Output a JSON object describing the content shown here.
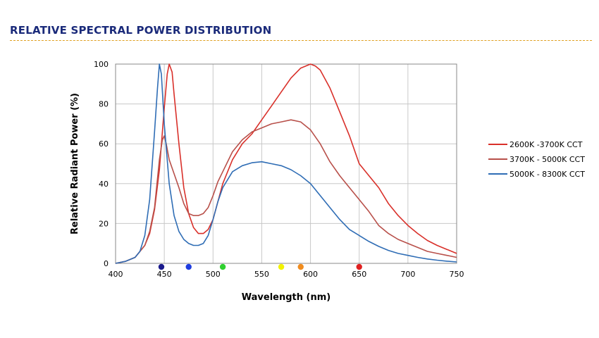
{
  "page": {
    "title": "RELATIVE SPECTRAL POWER DISTRIBUTION"
  },
  "chart_data": {
    "type": "line",
    "title": "",
    "xlabel": "Wavelength (nm)",
    "ylabel": "Relative Radiant Power (%)",
    "xlim": [
      400,
      750
    ],
    "ylim": [
      0,
      100
    ],
    "xticks": [
      400,
      450,
      500,
      550,
      600,
      650,
      700,
      750
    ],
    "yticks": [
      0,
      20,
      40,
      60,
      80,
      100
    ],
    "grid": true,
    "legend_position": "right",
    "series": [
      {
        "name": "2600K -3700K CCT",
        "color": "#d9302a",
        "x": [
          400,
          410,
          420,
          430,
          435,
          440,
          445,
          450,
          453,
          455,
          458,
          460,
          465,
          470,
          475,
          480,
          485,
          490,
          495,
          500,
          505,
          510,
          520,
          530,
          540,
          550,
          560,
          570,
          580,
          590,
          600,
          605,
          610,
          620,
          630,
          640,
          650,
          660,
          670,
          680,
          690,
          700,
          710,
          720,
          730,
          740,
          750
        ],
        "y": [
          0,
          1,
          3,
          9,
          15,
          27,
          47,
          78,
          95,
          100,
          96,
          85,
          60,
          38,
          25,
          18,
          15,
          15,
          17,
          22,
          31,
          40,
          52,
          60,
          65,
          72,
          79,
          86,
          93,
          98,
          100,
          99,
          97,
          88,
          76,
          64,
          50,
          44,
          38,
          30,
          24,
          19,
          15,
          11.5,
          9,
          7,
          5
        ]
      },
      {
        "name": "3700K - 5000K CCT",
        "color": "#b8504a",
        "x": [
          400,
          410,
          420,
          430,
          435,
          440,
          445,
          448,
          450,
          452,
          455,
          460,
          465,
          470,
          475,
          480,
          485,
          490,
          495,
          500,
          505,
          510,
          520,
          530,
          540,
          550,
          560,
          570,
          580,
          590,
          600,
          610,
          620,
          630,
          640,
          650,
          660,
          670,
          680,
          690,
          700,
          710,
          720,
          730,
          740,
          750
        ],
        "y": [
          0,
          1,
          3,
          9,
          16,
          28,
          52,
          62,
          64,
          60,
          52,
          45,
          38,
          30,
          25,
          24,
          24,
          25,
          28,
          34,
          41,
          46,
          56,
          62,
          66,
          68,
          70,
          71,
          72,
          71,
          67,
          60,
          51,
          44,
          38,
          32,
          26,
          19,
          15,
          12,
          10,
          8,
          6,
          5,
          4,
          3
        ]
      },
      {
        "name": "5000K - 8300K CCT",
        "color": "#2f6db5",
        "x": [
          400,
          410,
          420,
          425,
          430,
          435,
          440,
          443,
          445,
          447,
          450,
          455,
          460,
          465,
          470,
          475,
          480,
          485,
          490,
          495,
          500,
          505,
          510,
          520,
          530,
          540,
          550,
          560,
          570,
          580,
          590,
          600,
          610,
          620,
          630,
          640,
          650,
          660,
          670,
          680,
          690,
          700,
          710,
          720,
          730,
          740,
          750
        ],
        "y": [
          0,
          1,
          3,
          6,
          14,
          32,
          66,
          88,
          100,
          95,
          70,
          40,
          24,
          16,
          12,
          10,
          9,
          9,
          10,
          14,
          22,
          31,
          38,
          46,
          49,
          50.5,
          51,
          50,
          49,
          47,
          44,
          40,
          34,
          28,
          22,
          17,
          14,
          11,
          8.5,
          6.5,
          5,
          4,
          3,
          2.2,
          1.6,
          1.1,
          0.7
        ]
      }
    ],
    "axis_markers": [
      {
        "x": 447,
        "color": "#1a1a8c"
      },
      {
        "x": 475,
        "color": "#1f3de0"
      },
      {
        "x": 510,
        "color": "#2fd02f"
      },
      {
        "x": 570,
        "color": "#f2f200"
      },
      {
        "x": 590,
        "color": "#f08c1e"
      },
      {
        "x": 650,
        "color": "#e02020"
      }
    ]
  }
}
